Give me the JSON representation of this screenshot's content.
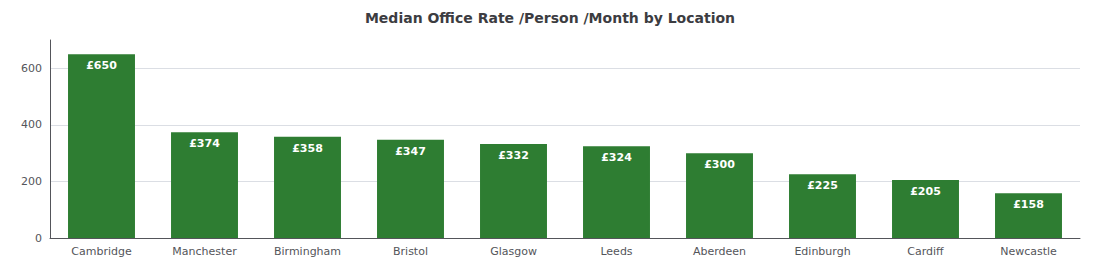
{
  "chart_data": {
    "type": "bar",
    "title": "Median Office Rate /Person /Month by Location",
    "categories": [
      "Cambridge",
      "Manchester",
      "Birmingham",
      "Bristol",
      "Glasgow",
      "Leeds",
      "Aberdeen",
      "Edinburgh",
      "Cardiff",
      "Newcastle"
    ],
    "values": [
      650,
      374,
      358,
      347,
      332,
      324,
      300,
      225,
      205,
      158
    ],
    "value_labels": [
      "£650",
      "£374",
      "£358",
      "£347",
      "£332",
      "£324",
      "£300",
      "£225",
      "£205",
      "£158"
    ],
    "data_labels": true,
    "color": "#2E7D32",
    "ylim": [
      0,
      700
    ],
    "yticks": [
      0,
      200,
      400,
      600
    ],
    "grid": true
  }
}
